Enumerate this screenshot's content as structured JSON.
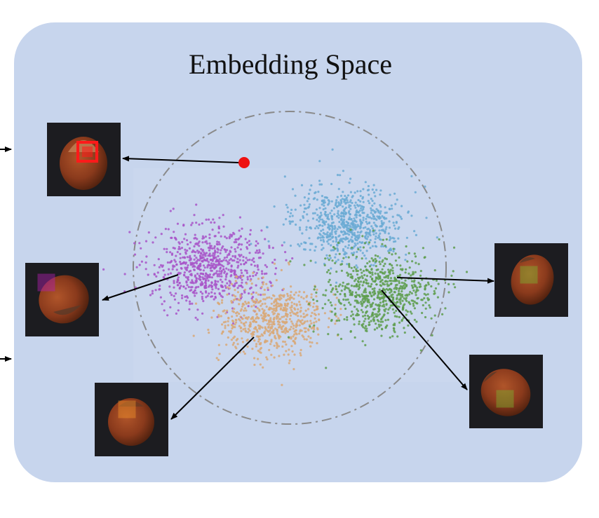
{
  "title": "Embedding Space",
  "colors": {
    "panel_bg": "#c7d5ed",
    "circle": "#8a8a8a",
    "anomaly_point": "#ee1111",
    "cluster_blue": "#6aaad4",
    "cluster_purple": "#a855c8",
    "cluster_green": "#5e9e4e",
    "cluster_orange": "#d9a876",
    "box_red": "#ff1a1a",
    "box_magenta": "#b020b0",
    "box_orange": "#f0902a",
    "box_green": "#7ab030"
  },
  "clusters": [
    {
      "name": "blue",
      "color_key": "cluster_blue",
      "count": 700
    },
    {
      "name": "purple",
      "color_key": "cluster_purple",
      "count": 750
    },
    {
      "name": "green",
      "color_key": "cluster_green",
      "count": 750
    },
    {
      "name": "orange",
      "color_key": "cluster_orange",
      "count": 650
    }
  ],
  "thumbnails": [
    {
      "name": "anomaly-thumbnail",
      "box_color_key": "box_red"
    },
    {
      "name": "purple-patch-thumbnail",
      "box_color_key": "box_magenta"
    },
    {
      "name": "orange-patch-thumbnail",
      "box_color_key": "box_orange"
    },
    {
      "name": "green-patch-thumbnail-upper",
      "box_color_key": "box_green"
    },
    {
      "name": "green-patch-thumbnail-lower",
      "box_color_key": "box_green"
    }
  ]
}
